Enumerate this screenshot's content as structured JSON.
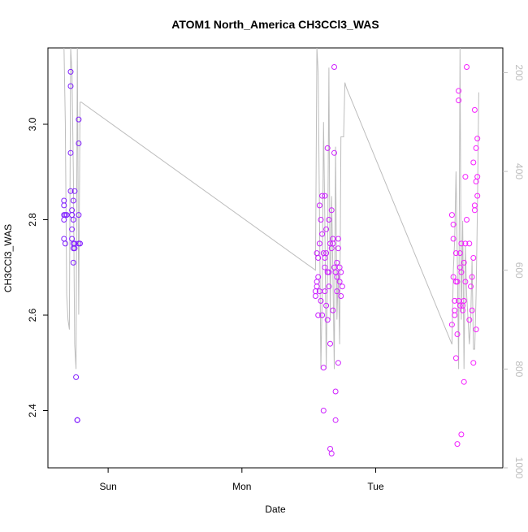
{
  "chart_data": {
    "type": "scatter",
    "title": "ATOM1 North_America CH3CCl3_WAS",
    "xlabel": "Date",
    "ylabel": "CH3CCl3_WAS",
    "x_ticks": [
      "Sun",
      "Mon",
      "Tue"
    ],
    "y_ticks": [
      "2.4",
      "2.6",
      "2.8",
      "3.0"
    ],
    "y_right_ticks": [
      "200",
      "400",
      "600",
      "800",
      "1000"
    ],
    "ylim": [
      2.28,
      3.16
    ],
    "y_right_lim": [
      1000,
      150
    ],
    "grid": false,
    "legend": "none",
    "colors": {
      "series_start": "#7a1fff",
      "series_end": "#ff1fff",
      "altitude_line": "#bdbdbd"
    },
    "x_range_days": [
      -0.45,
      2.95
    ],
    "series": [
      {
        "x": [
          -0.33,
          -0.33,
          -0.33,
          -0.33,
          -0.33,
          -0.32,
          -0.32,
          -0.31,
          -0.28,
          -0.28,
          -0.28,
          -0.28,
          -0.27,
          -0.27,
          -0.27,
          -0.27,
          -0.26,
          -0.26,
          -0.26,
          -0.26,
          -0.26,
          -0.25,
          -0.25,
          -0.25,
          -0.24,
          -0.23,
          -0.23,
          -0.23,
          -0.22,
          -0.22,
          -0.22,
          -0.22,
          -0.21
        ],
        "y": [
          2.84,
          2.83,
          2.81,
          2.8,
          2.76,
          2.81,
          2.75,
          2.81,
          3.11,
          3.08,
          2.94,
          2.86,
          2.82,
          2.81,
          2.78,
          2.76,
          2.75,
          2.74,
          2.84,
          2.8,
          2.71,
          2.86,
          2.75,
          2.74,
          2.47,
          2.38,
          2.38,
          2.38,
          3.01,
          2.96,
          2.81,
          2.75,
          2.75
        ]
      },
      {
        "x": [
          1.55,
          1.55,
          1.56,
          1.56,
          1.56,
          1.57,
          1.57,
          1.57,
          1.58,
          1.58,
          1.58,
          1.59,
          1.59,
          1.6,
          1.6,
          1.6,
          1.61,
          1.61,
          1.61,
          1.62,
          1.62,
          1.62,
          1.62,
          1.63,
          1.63,
          1.63,
          1.64,
          1.64,
          1.64,
          1.65,
          1.65,
          1.65,
          1.66,
          1.66,
          1.66,
          1.67,
          1.67,
          1.67,
          1.68,
          1.68,
          1.68,
          1.69,
          1.69,
          1.69,
          1.7,
          1.7,
          1.7,
          1.71,
          1.71,
          1.71,
          1.72,
          1.72,
          1.72,
          1.73,
          1.73,
          1.74,
          1.74,
          1.75
        ],
        "y": [
          2.65,
          2.64,
          2.73,
          2.67,
          2.66,
          2.68,
          2.72,
          2.6,
          2.83,
          2.75,
          2.65,
          2.63,
          2.8,
          2.85,
          2.77,
          2.6,
          2.49,
          2.4,
          2.73,
          2.85,
          2.72,
          2.65,
          2.7,
          2.78,
          2.62,
          2.73,
          2.95,
          2.69,
          2.59,
          2.8,
          2.69,
          2.66,
          2.54,
          2.75,
          2.32,
          2.82,
          2.74,
          2.31,
          2.76,
          2.75,
          2.61,
          2.7,
          3.12,
          2.94,
          2.69,
          2.44,
          2.38,
          2.71,
          2.68,
          2.65,
          2.74,
          2.76,
          2.5,
          2.7,
          2.67,
          2.64,
          2.69,
          2.66
        ]
      },
      {
        "x": [
          2.57,
          2.57,
          2.58,
          2.58,
          2.58,
          2.59,
          2.59,
          2.59,
          2.6,
          2.6,
          2.6,
          2.61,
          2.61,
          2.61,
          2.62,
          2.62,
          2.62,
          2.63,
          2.63,
          2.63,
          2.64,
          2.64,
          2.64,
          2.65,
          2.65,
          2.66,
          2.66,
          2.66,
          2.67,
          2.67,
          2.67,
          2.68,
          2.68,
          2.7,
          2.7,
          2.71,
          2.72,
          2.72,
          2.73,
          2.73,
          2.73,
          2.74,
          2.74,
          2.74,
          2.75,
          2.75,
          2.75,
          2.76,
          2.76,
          2.76
        ],
        "y": [
          2.58,
          2.81,
          2.79,
          2.76,
          2.68,
          2.63,
          2.61,
          2.6,
          2.73,
          2.67,
          2.51,
          2.67,
          2.56,
          2.33,
          3.07,
          3.05,
          2.63,
          2.73,
          2.7,
          2.62,
          2.69,
          2.35,
          2.75,
          2.61,
          2.62,
          2.46,
          2.63,
          2.71,
          2.67,
          2.75,
          2.89,
          3.12,
          2.8,
          2.75,
          2.59,
          2.66,
          2.68,
          2.61,
          2.5,
          2.72,
          2.92,
          2.82,
          2.83,
          3.03,
          2.57,
          2.88,
          2.95,
          2.85,
          2.89,
          2.97
        ]
      }
    ],
    "altitude_line": {
      "x": [
        -0.33,
        -0.32,
        -0.31,
        -0.3,
        -0.29,
        -0.28,
        -0.27,
        -0.26,
        -0.25,
        -0.24,
        -0.23,
        -0.22,
        -0.21,
        -0.2,
        1.55,
        1.56,
        1.57,
        1.58,
        1.59,
        1.6,
        1.61,
        1.62,
        1.63,
        1.64,
        1.65,
        1.66,
        1.67,
        1.68,
        1.69,
        1.7,
        1.71,
        1.72,
        1.73,
        1.74,
        1.75,
        1.76,
        1.77,
        1.78,
        2.57,
        2.58,
        2.59,
        2.6,
        2.61,
        2.62,
        2.63,
        2.64,
        2.65,
        2.66,
        2.67,
        2.68,
        2.69,
        2.7,
        2.71,
        2.72,
        2.73,
        2.74,
        2.75,
        2.76,
        2.77
      ],
      "alt": [
        150,
        300,
        650,
        700,
        720,
        150,
        200,
        400,
        750,
        800,
        150,
        690,
        260,
        260,
        600,
        150,
        200,
        500,
        800,
        650,
        300,
        500,
        800,
        600,
        190,
        700,
        450,
        600,
        800,
        350,
        700,
        600,
        750,
        330,
        330,
        330,
        220,
        230,
        750,
        600,
        540,
        400,
        580,
        800,
        150,
        700,
        500,
        800,
        550,
        650,
        700,
        750,
        700,
        580,
        760,
        760,
        650,
        480,
        240
      ]
    }
  }
}
